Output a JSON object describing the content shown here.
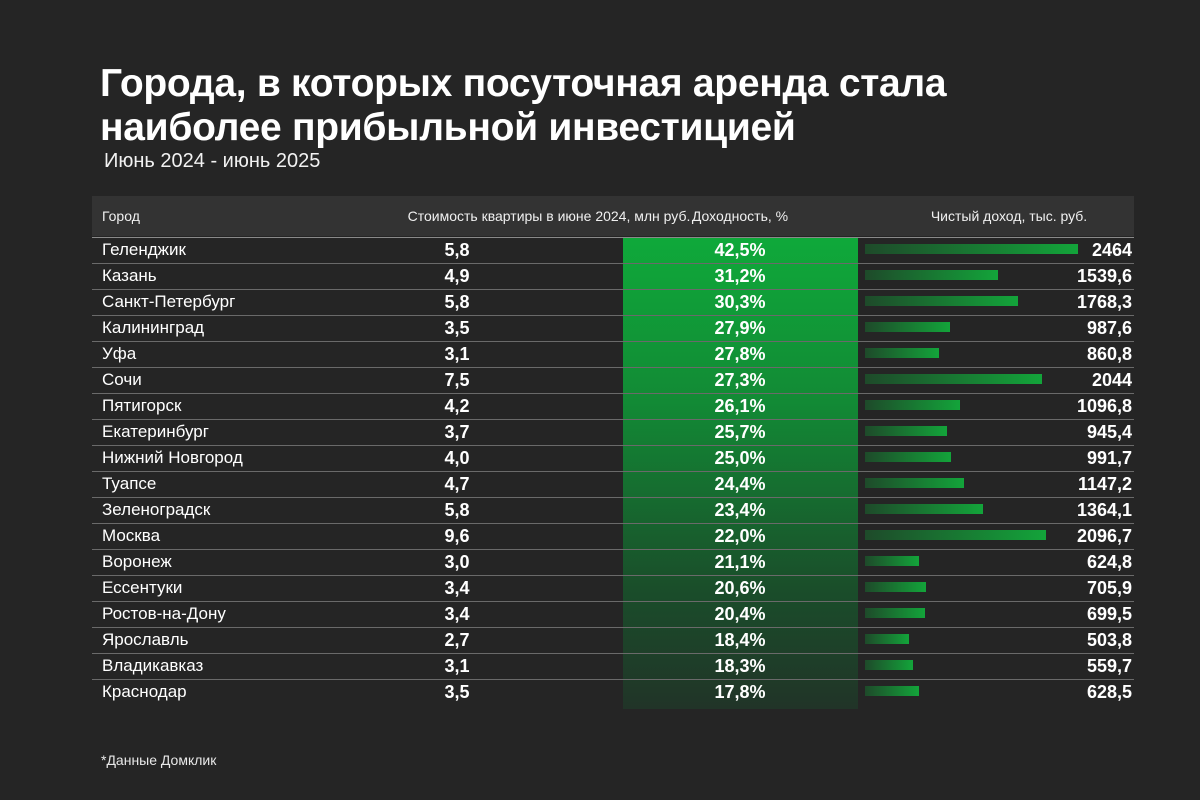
{
  "title": "Города, в которых посуточная аренда стала наиболее прибыльной инвестицией",
  "subtitle": "Июнь 2024 - июнь 2025",
  "footnote": "*Данные Домклик",
  "colors": {
    "background": "#252525",
    "accent": "#13a43a"
  },
  "chart_data": {
    "type": "table",
    "title": "Города, в которых посуточная аренда стала наиболее прибыльной инвестицией",
    "subtitle": "Июнь 2024 - июнь 2025",
    "columns": [
      "Город",
      "Стоимость квартиры в июне 2024, млн руб.",
      "Доходность, %",
      "Чистый доход, тыс. руб."
    ],
    "bar_max": 2464,
    "rows": [
      {
        "city": "Геленджик",
        "price": "5,8",
        "yield": "42,5%",
        "income": "2464",
        "income_value": 2464
      },
      {
        "city": "Казань",
        "price": "4,9",
        "yield": "31,2%",
        "income": "1539,6",
        "income_value": 1539.6
      },
      {
        "city": "Санкт-Петербург",
        "price": "5,8",
        "yield": "30,3%",
        "income": "1768,3",
        "income_value": 1768.3
      },
      {
        "city": "Калининград",
        "price": "3,5",
        "yield": "27,9%",
        "income": "987,6",
        "income_value": 987.6
      },
      {
        "city": "Уфа",
        "price": "3,1",
        "yield": "27,8%",
        "income": "860,8",
        "income_value": 860.8
      },
      {
        "city": "Сочи",
        "price": "7,5",
        "yield": "27,3%",
        "income": "2044",
        "income_value": 2044
      },
      {
        "city": "Пятигорск",
        "price": "4,2",
        "yield": "26,1%",
        "income": "1096,8",
        "income_value": 1096.8
      },
      {
        "city": "Екатеринбург",
        "price": "3,7",
        "yield": "25,7%",
        "income": "945,4",
        "income_value": 945.4
      },
      {
        "city": "Нижний Новгород",
        "price": "4,0",
        "yield": "25,0%",
        "income": "991,7",
        "income_value": 991.7
      },
      {
        "city": "Туапсе",
        "price": "4,7",
        "yield": "24,4%",
        "income": "1147,2",
        "income_value": 1147.2
      },
      {
        "city": "Зеленоградск",
        "price": "5,8",
        "yield": "23,4%",
        "income": "1364,1",
        "income_value": 1364.1
      },
      {
        "city": "Москва",
        "price": "9,6",
        "yield": "22,0%",
        "income": "2096,7",
        "income_value": 2096.7
      },
      {
        "city": "Воронеж",
        "price": "3,0",
        "yield": "21,1%",
        "income": "624,8",
        "income_value": 624.8
      },
      {
        "city": "Ессентуки",
        "price": "3,4",
        "yield": "20,6%",
        "income": "705,9",
        "income_value": 705.9
      },
      {
        "city": "Ростов-на-Дону",
        "price": "3,4",
        "yield": "20,4%",
        "income": "699,5",
        "income_value": 699.5
      },
      {
        "city": "Ярославль",
        "price": "2,7",
        "yield": "18,4%",
        "income": "503,8",
        "income_value": 503.8
      },
      {
        "city": "Владикавказ",
        "price": "3,1",
        "yield": "18,3%",
        "income": "559,7",
        "income_value": 559.7
      },
      {
        "city": "Краснодар",
        "price": "3,5",
        "yield": "17,8%",
        "income": "628,5",
        "income_value": 628.5
      }
    ]
  }
}
